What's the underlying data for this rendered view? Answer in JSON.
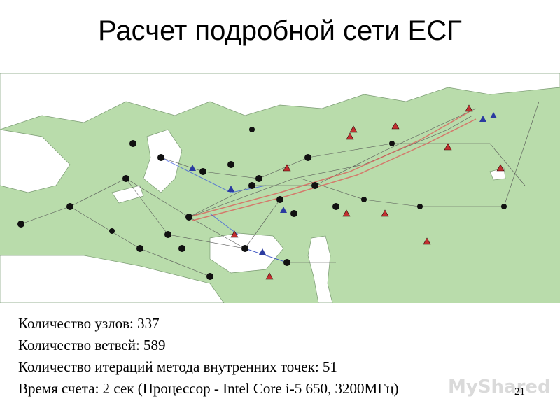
{
  "slide": {
    "title": "Расчет подробной сети ЕСГ",
    "stats": [
      "Количество узлов: 337",
      "Количество ветвей: 589",
      "Количество итераций метода внутренних точек: 51",
      "Время счета: 2 сек (Процессор - Intel Core i-5 650, 3200МГц)"
    ],
    "page_number": "21",
    "watermark": "MyShared"
  }
}
